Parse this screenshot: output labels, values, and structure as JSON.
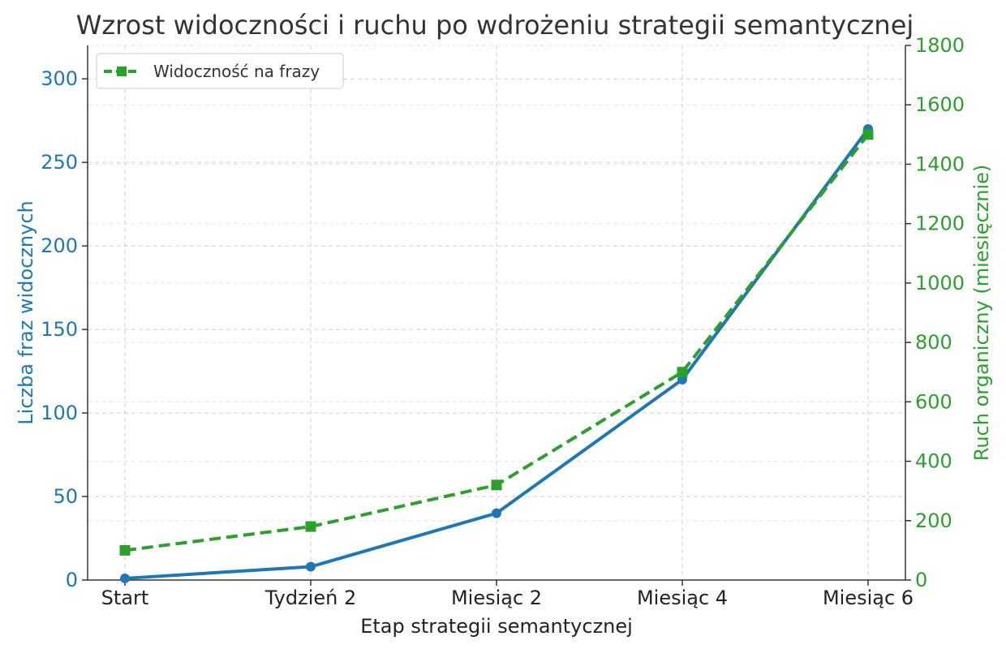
{
  "colors": {
    "left_series": "#1f77b4",
    "right_series": "#2ca02c",
    "left_axis_text": "#1f77b4",
    "right_axis_text": "#2ca02c",
    "grid": "#cfcfcf",
    "text": "#333333"
  },
  "chart_data": {
    "type": "line",
    "title": "Wzrost widoczności i ruchu po wdrożeniu strategii semantycznej",
    "xlabel": "Etap strategii semantycznej",
    "ylabel": "Liczba fraz widocznych",
    "y2label": "Ruch organiczny (miesięcznie)",
    "categories": [
      "Start",
      "Tydzień 2",
      "Miesiąc 2",
      "Miesiąc 4",
      "Miesiąc 6"
    ],
    "ylim": [
      0,
      320
    ],
    "y2lim": [
      0,
      1800
    ],
    "yticks": [
      "0",
      "50",
      "100",
      "150",
      "200",
      "250",
      "300"
    ],
    "y2ticks": [
      "0",
      "200",
      "400",
      "600",
      "800",
      "1000",
      "1200",
      "1400",
      "1600",
      "1800"
    ],
    "grid": true,
    "legend_position": "top-left",
    "series": [
      {
        "axis": "left",
        "marker": "circle",
        "line_style": "solid",
        "values": [
          1,
          8,
          40,
          120,
          270
        ]
      },
      {
        "name": "Widoczność na frazy",
        "axis": "right",
        "marker": "square",
        "line_style": "dashed",
        "values": [
          100,
          180,
          320,
          700,
          1500
        ]
      }
    ]
  }
}
